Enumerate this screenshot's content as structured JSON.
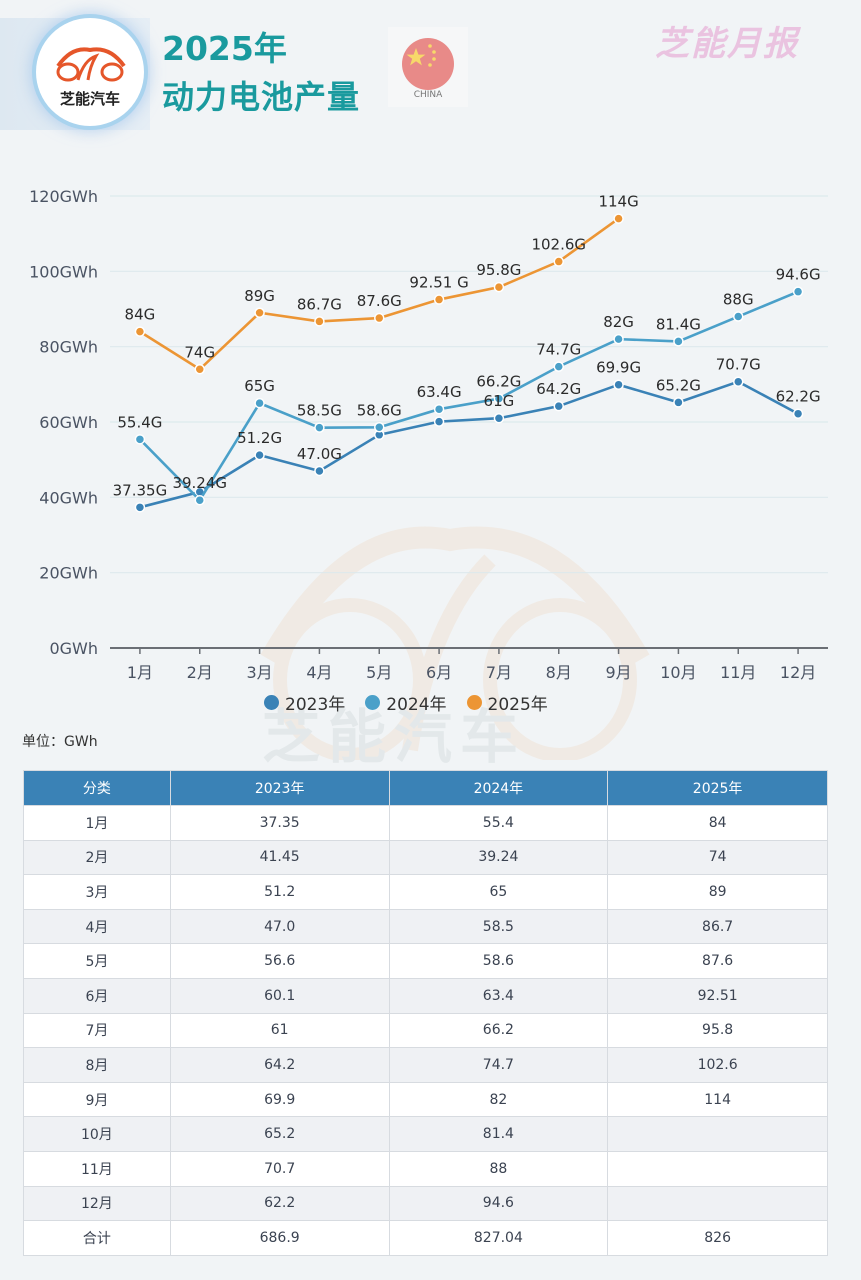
{
  "header": {
    "logo_text": "芝能汽车",
    "title_year": "2025年",
    "title_main": "动力电池产量",
    "flag_label": "CHINA",
    "brand": "芝能月报"
  },
  "watermark": "芝能汽车",
  "unit_label": "单位：GWh",
  "colors": {
    "s2023": "#3a82b6",
    "s2024": "#4aa0c9",
    "s2025": "#ec9534",
    "table_header": "#3a82b6"
  },
  "chart_data": {
    "type": "line",
    "title": "2025年 动力电池产量",
    "xlabel": "",
    "ylabel": "",
    "categories": [
      "1月",
      "2月",
      "3月",
      "4月",
      "5月",
      "6月",
      "7月",
      "8月",
      "9月",
      "10月",
      "11月",
      "12月"
    ],
    "ylim": [
      0,
      120
    ],
    "yticks": [
      0,
      20,
      40,
      60,
      80,
      100,
      120
    ],
    "ytick_labels": [
      "0GWh",
      "20GWh",
      "40GWh",
      "60GWh",
      "80GWh",
      "100GWh",
      "120GWh"
    ],
    "grid": true,
    "legend_position": "bottom",
    "series": [
      {
        "name": "2023年",
        "color": "#3a82b6",
        "values": [
          37.35,
          41.45,
          51.2,
          47.0,
          56.6,
          60.1,
          61,
          64.2,
          69.9,
          65.2,
          70.7,
          62.2
        ],
        "labels": [
          "37.35G",
          "",
          "51.2G",
          "47.0G",
          "",
          "",
          "61G",
          "64.2G",
          "69.9G",
          "65.2G",
          "70.7G",
          "62.2G"
        ]
      },
      {
        "name": "2024年",
        "color": "#4aa0c9",
        "values": [
          55.4,
          39.24,
          65,
          58.5,
          58.6,
          63.4,
          66.2,
          74.7,
          82,
          81.4,
          88,
          94.6
        ],
        "labels": [
          "55.4G",
          "39.24G",
          "65G",
          "58.5G",
          "58.6G",
          "63.4G",
          "66.2G",
          "74.7G",
          "82G",
          "81.4G",
          "88G",
          "94.6G"
        ]
      },
      {
        "name": "2025年",
        "color": "#ec9534",
        "values": [
          84,
          74,
          89,
          86.7,
          87.6,
          92.51,
          95.8,
          102.6,
          114,
          null,
          null,
          null
        ],
        "labels": [
          "84G",
          "74G",
          "89G",
          "86.7G",
          "87.6G",
          "92.51 G",
          "95.8G",
          "102.6G",
          "114G",
          "",
          "",
          ""
        ]
      }
    ]
  },
  "table": {
    "headers": [
      "分类",
      "2023年",
      "2024年",
      "2025年"
    ],
    "rows": [
      [
        "1月",
        "37.35",
        "55.4",
        "84"
      ],
      [
        "2月",
        "41.45",
        "39.24",
        "74"
      ],
      [
        "3月",
        "51.2",
        "65",
        "89"
      ],
      [
        "4月",
        "47.0",
        "58.5",
        "86.7"
      ],
      [
        "5月",
        "56.6",
        "58.6",
        "87.6"
      ],
      [
        "6月",
        "60.1",
        "63.4",
        "92.51"
      ],
      [
        "7月",
        "61",
        "66.2",
        "95.8"
      ],
      [
        "8月",
        "64.2",
        "74.7",
        "102.6"
      ],
      [
        "9月",
        "69.9",
        "82",
        "114"
      ],
      [
        "10月",
        "65.2",
        "81.4",
        ""
      ],
      [
        "11月",
        "70.7",
        "88",
        ""
      ],
      [
        "12月",
        "62.2",
        "94.6",
        ""
      ],
      [
        "合计",
        "686.9",
        "827.04",
        "826"
      ]
    ]
  }
}
